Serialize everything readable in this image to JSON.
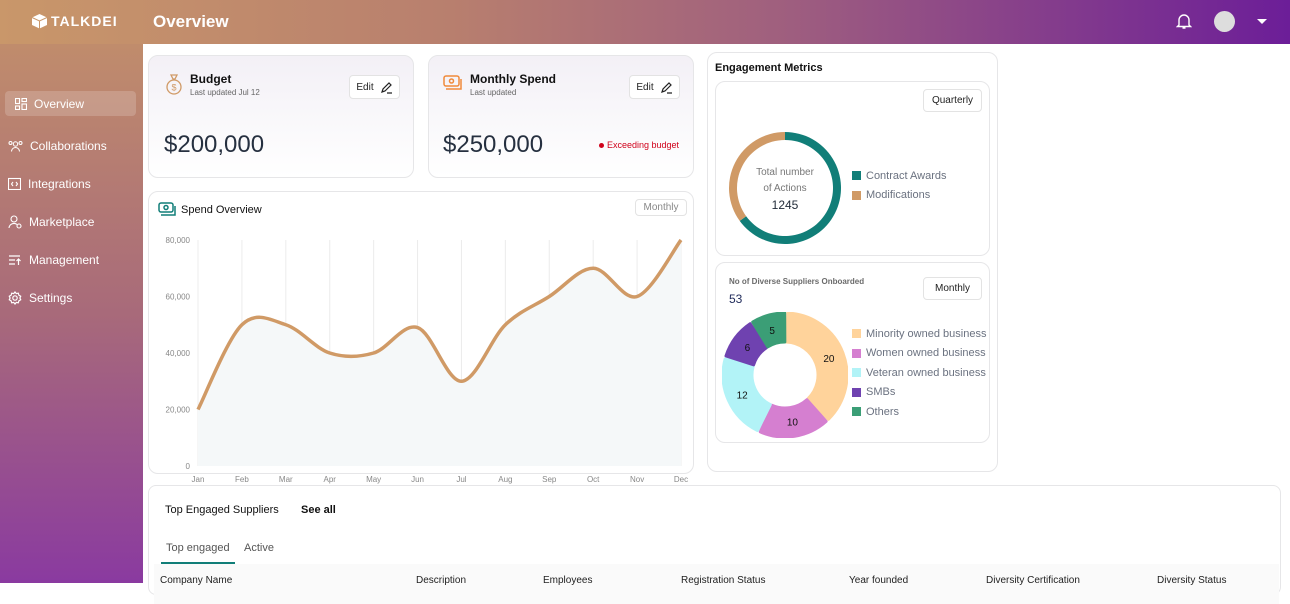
{
  "header": {
    "logo": "TALKDEI",
    "title": "Overview"
  },
  "sidebar": {
    "items": [
      {
        "label": "Overview",
        "icon": "grid-icon",
        "active": true
      },
      {
        "label": "Collaborations",
        "icon": "users-icon"
      },
      {
        "label": "Integrations",
        "icon": "code-box-icon"
      },
      {
        "label": "Marketplace",
        "icon": "user-tag-icon"
      },
      {
        "label": "Management",
        "icon": "list-upload-icon"
      },
      {
        "label": "Settings",
        "icon": "gear-icon"
      }
    ]
  },
  "budget": {
    "title": "Budget",
    "subtitle": "Last updated Jul 12",
    "value": "$200,000",
    "edit": "Edit"
  },
  "monthly_spend": {
    "title": "Monthly Spend",
    "subtitle": "Last updated",
    "value": "$250,000",
    "edit": "Edit",
    "status": "Exceeding budget",
    "status_color": "#d0021b"
  },
  "spend_overview": {
    "title": "Spend Overview",
    "period": "Monthly"
  },
  "chart_data": [
    {
      "type": "area",
      "categories": [
        "Jan",
        "Feb",
        "Mar",
        "Apr",
        "May",
        "Jun",
        "Jul",
        "Aug",
        "Sep",
        "Oct",
        "Nov",
        "Dec"
      ],
      "values": [
        20000,
        50000,
        50000,
        40000,
        40000,
        49000,
        30000,
        50000,
        60000,
        70000,
        60000,
        80000
      ],
      "yticks": [
        "0",
        "20,000",
        "40,000",
        "60,000",
        "80,000"
      ],
      "ylim": [
        0,
        80000
      ],
      "grid": "vertical",
      "color": "#d09a66"
    },
    {
      "type": "pie",
      "title": "Total number of Actions",
      "total": "1245",
      "series": [
        {
          "name": "Contract Awards",
          "value": 65,
          "color": "#117e78"
        },
        {
          "name": "Modifications",
          "value": 35,
          "color": "#d09a66"
        }
      ]
    },
    {
      "type": "pie",
      "title": "No of Diverse Suppliers Onboarded",
      "total": "53",
      "series": [
        {
          "name": "Minority owned business",
          "value": 20,
          "color": "#ffd39b"
        },
        {
          "name": "Women owned business",
          "value": 10,
          "color": "#d57fd0"
        },
        {
          "name": "Veteran owned business",
          "value": 12,
          "color": "#b2f3f7"
        },
        {
          "name": "SMBs",
          "value": 6,
          "color": "#6f42b0"
        },
        {
          "name": "Others",
          "value": 5,
          "color": "#3b9e76"
        }
      ]
    }
  ],
  "engagement": {
    "title": "Engagement Metrics",
    "period": "Quarterly",
    "center_line1": "Total number",
    "center_line2": "of Actions",
    "diverse_period": "Monthly"
  },
  "suppliers": {
    "title": "Top Engaged Suppliers",
    "see_all": "See all",
    "tabs": [
      "Top engaged",
      "Active"
    ],
    "columns": [
      "Company Name",
      "Description",
      "Employees",
      "Registration Status",
      "Year founded",
      "Diversity Certification",
      "Diversity Status"
    ]
  }
}
